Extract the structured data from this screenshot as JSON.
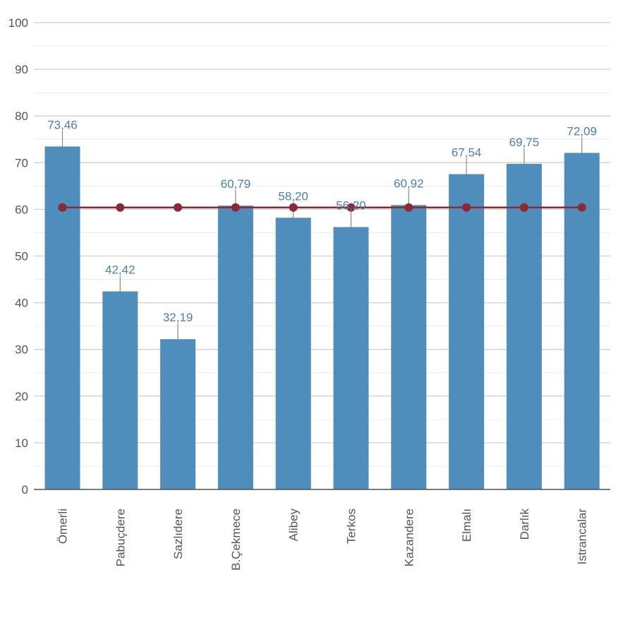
{
  "chart_data": {
    "type": "bar",
    "categories": [
      "Ömerli",
      "Pabuçdere",
      "Sazlıdere",
      "B.Çekmece",
      "Alibey",
      "Terkos",
      "Kazandere",
      "Elmalı",
      "Darlık",
      "Istrancalar"
    ],
    "series": [
      {
        "type": "bar",
        "values": [
          73.46,
          42.42,
          32.19,
          60.79,
          58.2,
          56.2,
          60.92,
          67.54,
          69.75,
          72.09
        ],
        "labels": [
          "73,46",
          "42,42",
          "32,19",
          "60,79",
          "58,20",
          "56,20",
          "60,92",
          "67,54",
          "69,75",
          "72,09"
        ],
        "color": "#4f8dbd"
      },
      {
        "type": "line",
        "values": [
          60.4,
          60.4,
          60.4,
          60.4,
          60.4,
          60.4,
          60.4,
          60.4,
          60.4,
          60.4
        ],
        "color": "#8b2a36"
      }
    ],
    "ylim": [
      0,
      100
    ],
    "yticks": [
      0,
      10,
      20,
      30,
      40,
      50,
      60,
      70,
      80,
      90,
      100
    ],
    "grid": true,
    "xlabel": "",
    "ylabel": "",
    "title": ""
  }
}
